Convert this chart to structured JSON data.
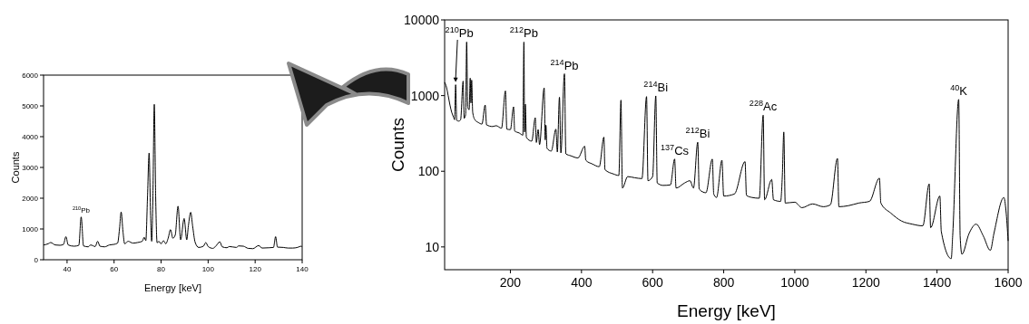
{
  "chart_data": [
    {
      "type": "line",
      "xlabel": "Energy [keV]",
      "ylabel": "Counts",
      "xlim": [
        30,
        140
      ],
      "xticks": [
        40,
        60,
        80,
        100,
        120,
        140
      ],
      "ylim": [
        0,
        6000
      ],
      "yticks": [
        0,
        1000,
        2000,
        3000,
        4000,
        5000,
        6000
      ],
      "x": [
        30,
        32,
        33,
        35,
        37,
        38.5,
        39.5,
        40.5,
        43,
        45,
        46,
        47,
        49,
        50,
        52,
        53,
        54,
        56,
        58,
        60,
        61.5,
        62.3,
        63,
        63.8,
        64.5,
        66,
        68,
        70,
        72,
        72.8,
        73.5,
        74.2,
        74.9,
        75.5,
        76,
        76.5,
        77.1,
        77.7,
        78.3,
        79,
        80,
        81,
        82,
        83,
        84,
        85,
        86,
        87.2,
        88.3,
        89.8,
        90.9,
        91.6,
        92.6,
        93.4,
        94.5,
        96,
        98,
        99,
        100,
        102,
        103,
        105,
        106,
        108,
        109,
        112,
        113,
        115,
        117,
        119,
        121.5,
        123,
        126,
        127.8,
        128.7,
        129.5,
        132,
        134,
        136,
        138,
        139.5,
        140
      ],
      "series": [
        {
          "color": "#000000",
          "values": [
            480,
            520,
            560,
            480,
            470,
            500,
            750,
            480,
            440,
            470,
            1390,
            450,
            420,
            480,
            430,
            600,
            440,
            420,
            480,
            500,
            540,
            1000,
            1550,
            900,
            520,
            600,
            540,
            560,
            600,
            730,
            620,
            2000,
            3470,
            1500,
            600,
            2000,
            5050,
            2000,
            550,
            600,
            520,
            620,
            520,
            700,
            980,
            700,
            800,
            1740,
            650,
            1340,
            650,
            1100,
            1540,
            1100,
            560,
            400,
            440,
            560,
            430,
            370,
            420,
            580,
            420,
            390,
            430,
            400,
            450,
            440,
            370,
            360,
            460,
            380,
            390,
            400,
            750,
            410,
            400,
            380,
            380,
            400,
            440,
            420
          ]
        }
      ],
      "annotations": [
        {
          "text": "$^{210}$Pb",
          "x": 46,
          "y": 1390
        }
      ]
    },
    {
      "type": "line",
      "xlabel": "Energy [keV]",
      "ylabel": "Counts",
      "log": "y",
      "xlim": [
        15,
        1600
      ],
      "xticks": [
        200,
        400,
        600,
        800,
        1000,
        1200,
        1400,
        1600
      ],
      "ylim": [
        5,
        10000
      ],
      "yticks": [
        10,
        100,
        1000,
        10000
      ],
      "x": [
        15,
        20,
        25,
        30,
        35,
        40,
        43,
        46,
        49,
        55,
        60,
        67,
        70,
        74,
        77,
        80,
        84,
        87,
        89,
        91,
        94,
        100,
        110,
        120,
        129,
        133,
        150,
        160,
        175,
        186,
        190,
        200,
        209,
        212,
        225,
        235,
        238,
        240,
        242,
        245,
        260,
        270,
        273,
        278,
        282,
        295,
        298,
        300,
        303,
        315,
        328,
        332,
        338,
        342,
        352,
        356,
        370,
        390,
        409,
        412,
        430,
        450,
        463,
        466,
        490,
        505,
        511,
        515,
        530,
        550,
        570,
        583,
        587,
        600,
        609,
        613,
        630,
        650,
        662,
        666,
        690,
        705,
        715,
        727,
        731,
        750,
        768,
        772,
        780,
        795,
        800,
        830,
        860,
        864,
        880,
        900,
        911,
        915,
        935,
        940,
        960,
        965,
        969,
        973,
        1000,
        1020,
        1050,
        1080,
        1100,
        1120,
        1124,
        1150,
        1180,
        1210,
        1238,
        1242,
        1270,
        1300,
        1330,
        1360,
        1378,
        1382,
        1408,
        1412,
        1440,
        1444,
        1461,
        1465,
        1470,
        1490,
        1510,
        1530,
        1550,
        1560,
        1588,
        1594,
        1600
      ],
      "series": [
        {
          "color": "#000000",
          "values": [
            1500,
            1300,
            1000,
            750,
            600,
            520,
            480,
            1390,
            470,
            460,
            480,
            1550,
            500,
            560,
            5100,
            700,
            650,
            1700,
            800,
            1600,
            600,
            480,
            440,
            420,
            750,
            410,
            390,
            400,
            370,
            1150,
            360,
            355,
            710,
            340,
            320,
            300,
            5100,
            330,
            770,
            280,
            250,
            510,
            240,
            355,
            225,
            1260,
            260,
            405,
            200,
            185,
            360,
            180,
            950,
            175,
            1940,
            170,
            160,
            150,
            214,
            140,
            125,
            115,
            282,
            105,
            92,
            88,
            870,
            60,
            85,
            82,
            80,
            970,
            75,
            85,
            990,
            70,
            65,
            66,
            145,
            60,
            70,
            75,
            60,
            242,
            58,
            52,
            145,
            50,
            45,
            140,
            47,
            50,
            134,
            48,
            45,
            44,
            550,
            42,
            78,
            42,
            40,
            90,
            330,
            38,
            39,
            33,
            37,
            34,
            36,
            148,
            34,
            35,
            38,
            40,
            81,
            38,
            28,
            22,
            20,
            19,
            68,
            18,
            47,
            16,
            7,
            14,
            890,
            14,
            8,
            15,
            20,
            14,
            9,
            15,
            45,
            30,
            12
          ]
        }
      ],
      "annotations": [
        {
          "text": "$^{210}$Pb",
          "x": 46
        },
        {
          "text": "$^{212}$Pb",
          "x": 238,
          "y": 5100
        },
        {
          "text": "$^{214}$Pb",
          "x": 352,
          "y": 1940
        },
        {
          "text": "$^{214}$Bi",
          "x": 609,
          "y": 990
        },
        {
          "text": "$^{137}$Cs",
          "x": 662,
          "y": 145
        },
        {
          "text": "$^{212}$Bi",
          "x": 727,
          "y": 242
        },
        {
          "text": "$^{228}$Ac",
          "x": 911,
          "y": 550
        },
        {
          "text": "$^{40}$K",
          "x": 1461,
          "y": 890
        }
      ]
    }
  ]
}
